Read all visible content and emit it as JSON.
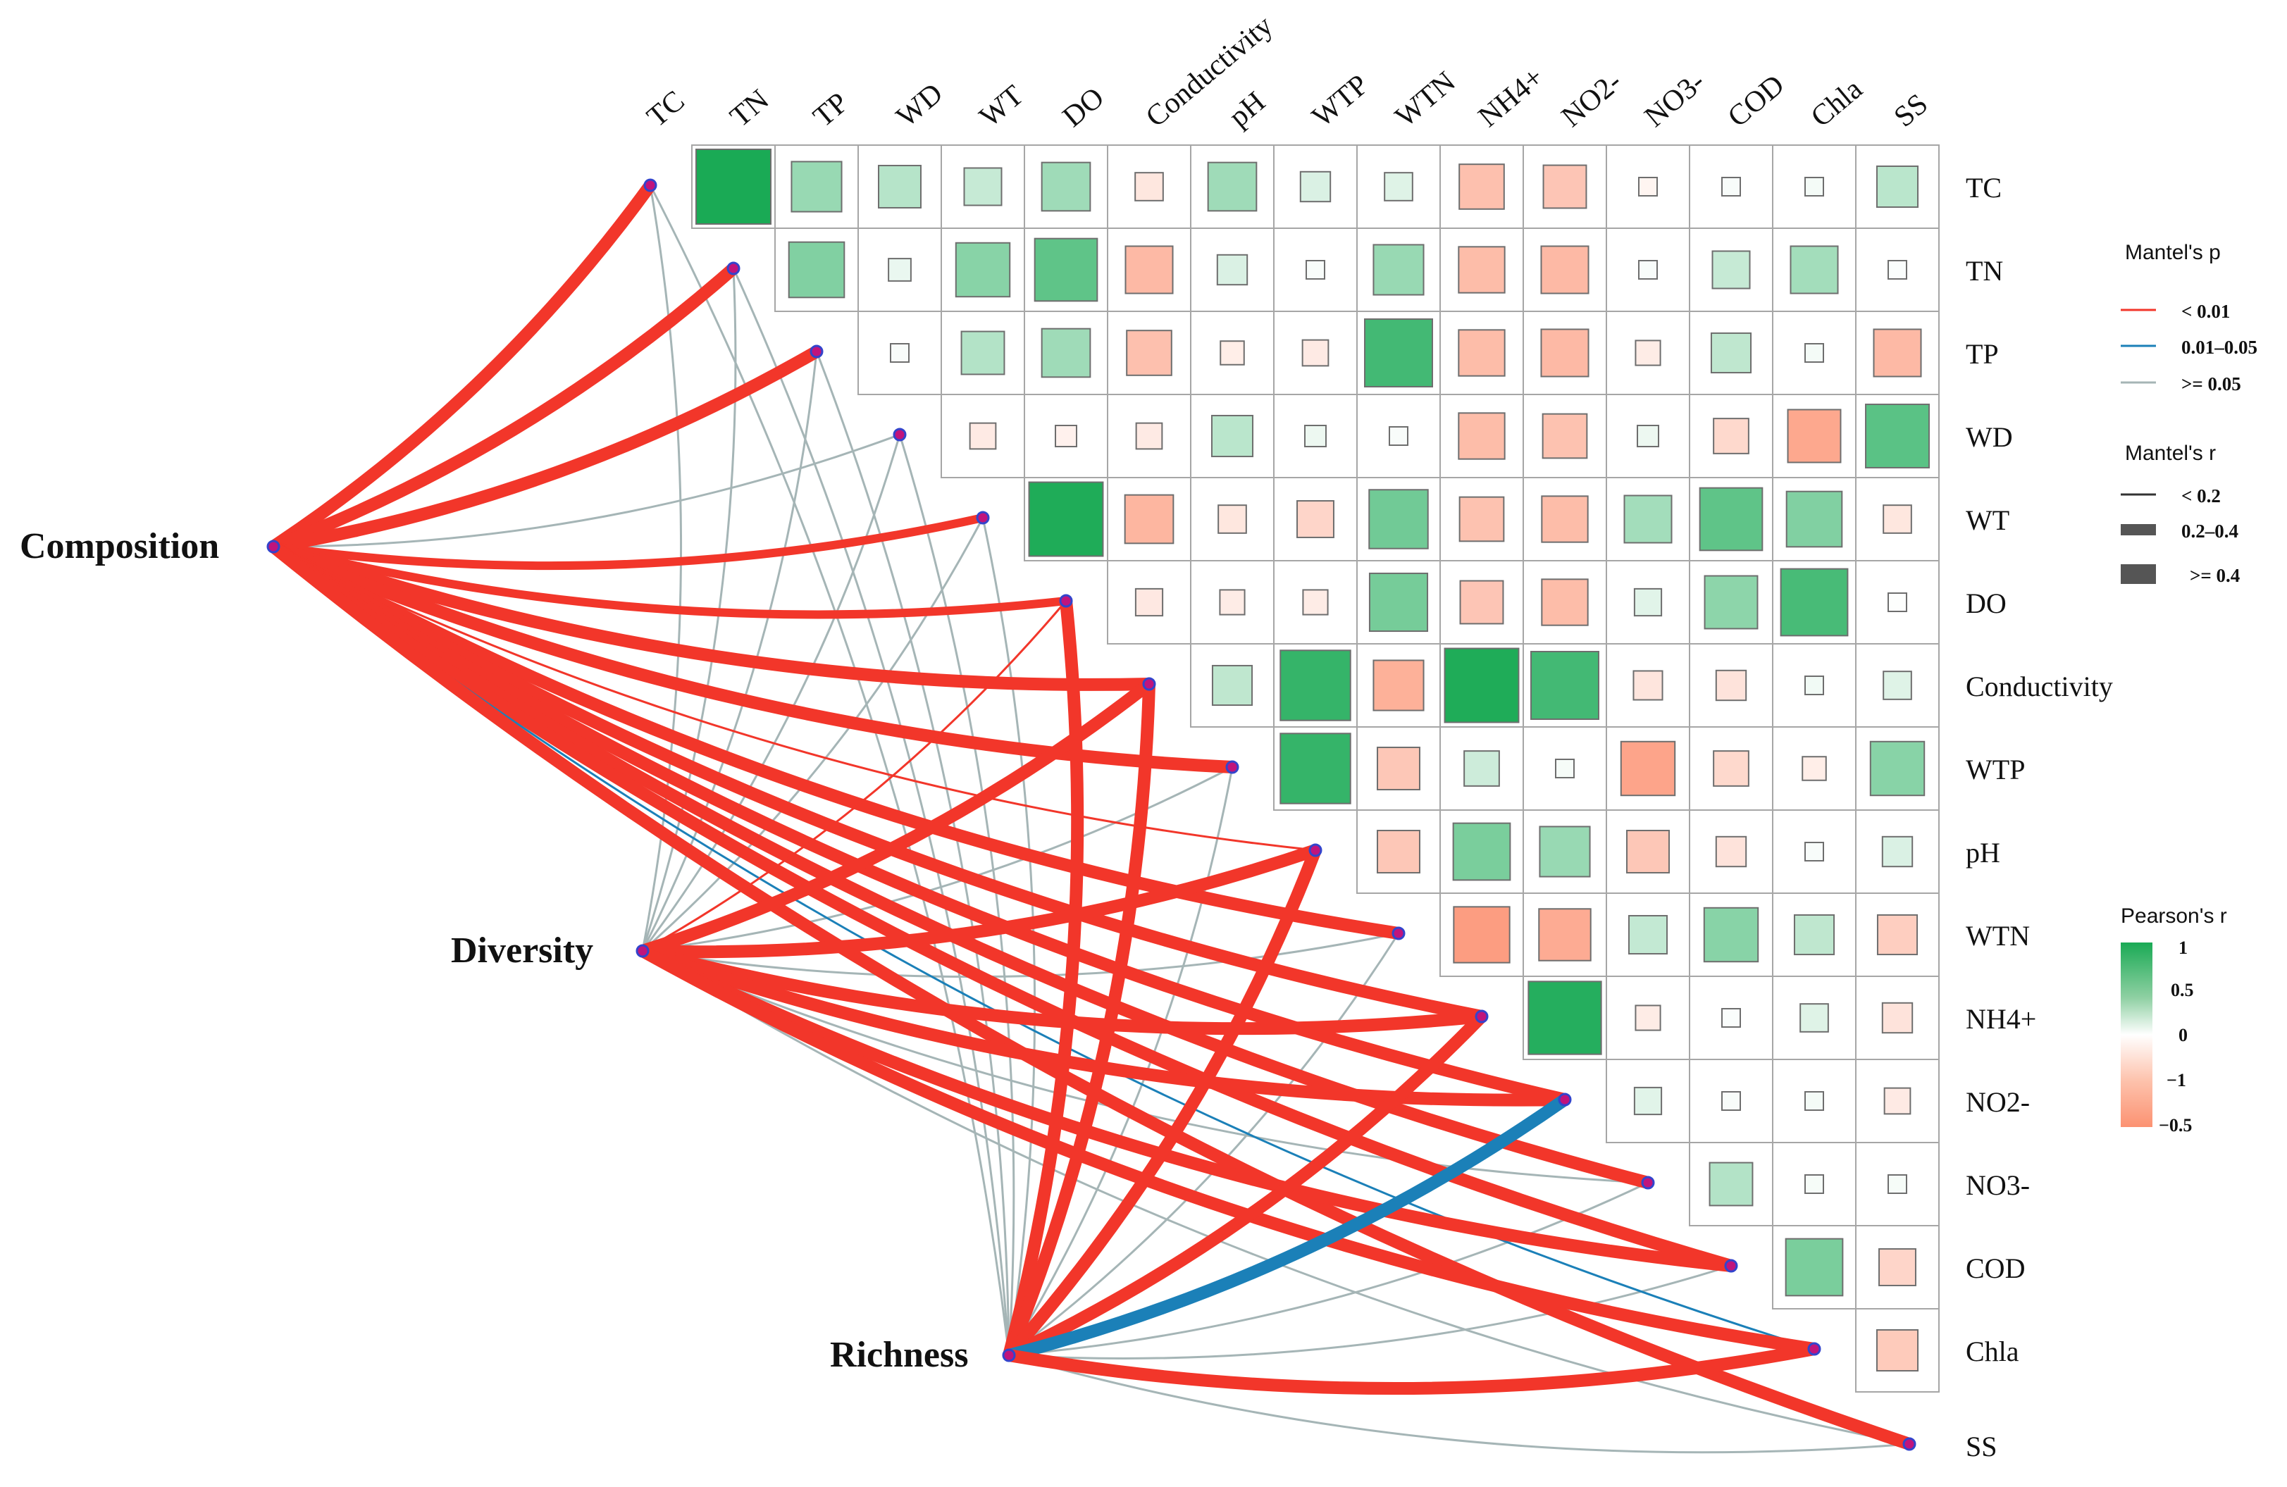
{
  "chart_data": {
    "type": "mantel-correlation-heatmap",
    "variables": [
      "TC",
      "TN",
      "TP",
      "WD",
      "WT",
      "DO",
      "Conductivity",
      "pH",
      "WTP",
      "WTN",
      "NH4+",
      "NO2-",
      "NO3-",
      "COD",
      "Chla",
      "SS"
    ],
    "column_labels": [
      "TC",
      "TN",
      "TP",
      "WD",
      "WT",
      "DO",
      "Conductivity",
      "pH",
      "WTP",
      "WTN",
      "NH4+",
      "NO2-",
      "NO3-",
      "COD",
      "Chla",
      "SS"
    ],
    "row_labels": [
      "TC",
      "TN",
      "TP",
      "WD",
      "WT",
      "DO",
      "Conductivity",
      "WTP",
      "pH",
      "WTN",
      "NH4+",
      "NO2-",
      "NO3-",
      "COD",
      "Chla",
      "SS"
    ],
    "pearson_r": [
      [
        1.0,
        0.45,
        0.32,
        0.25,
        0.42,
        -0.14,
        0.42,
        0.16,
        0.14,
        -0.36,
        -0.33,
        -0.06,
        0.03,
        0.05,
        0.3
      ],
      [
        0.55,
        0.09,
        0.52,
        0.7,
        -0.4,
        0.16,
        0.03,
        0.45,
        -0.38,
        -0.4,
        0.03,
        0.25,
        0.4,
        0.02
      ],
      [
        0.03,
        0.33,
        0.42,
        -0.36,
        -0.1,
        -0.12,
        0.82,
        -0.38,
        -0.4,
        -0.11,
        0.28,
        0.05,
        -0.4
      ],
      [
        -0.12,
        -0.08,
        -0.12,
        0.3,
        0.08,
        0.03,
        -0.38,
        -0.35,
        0.08,
        -0.22,
        -0.5,
        0.72
      ],
      [
        0.98,
        -0.42,
        -0.14,
        -0.24,
        0.62,
        -0.35,
        -0.38,
        0.4,
        0.7,
        0.55,
        -0.14
      ],
      [
        -0.13,
        -0.11,
        -0.11,
        0.6,
        -0.33,
        -0.38,
        0.13,
        0.5,
        0.8,
        0.01
      ],
      [
        0.28,
        0.88,
        -0.45,
        0.98,
        0.82,
        -0.15,
        -0.16,
        0.06,
        0.14
      ],
      [
        0.88,
        -0.32,
        0.22,
        0.04,
        -0.52,
        -0.22,
        -0.1,
        0.52
      ],
      [
        -0.32,
        0.58,
        0.45,
        -0.32,
        -0.16,
        0.03,
        0.16
      ],
      [
        -0.56,
        -0.48,
        0.26,
        0.52,
        0.28,
        -0.28
      ],
      [
        0.95,
        -0.11,
        0.02,
        0.14,
        -0.16
      ],
      [
        0.13,
        0.03,
        0.05,
        -0.12
      ],
      [
        0.33,
        0.04,
        0.04
      ],
      [
        0.58,
        -0.24
      ],
      [
        -0.3
      ]
    ],
    "mantel": {
      "groups": [
        "Composition",
        "Diversity",
        "Richness"
      ],
      "links": [
        {
          "from": "Composition",
          "to": "TC",
          "p": "< 0.01",
          "r": ">= 0.4"
        },
        {
          "from": "Composition",
          "to": "TN",
          "p": "< 0.01",
          "r": ">= 0.4"
        },
        {
          "from": "Composition",
          "to": "TP",
          "p": "< 0.01",
          "r": ">= 0.4"
        },
        {
          "from": "Composition",
          "to": "WD",
          "p": ">= 0.05",
          "r": "< 0.2"
        },
        {
          "from": "Composition",
          "to": "WT",
          "p": "< 0.01",
          "r": "0.2–0.4"
        },
        {
          "from": "Composition",
          "to": "DO",
          "p": "< 0.01",
          "r": "0.2–0.4"
        },
        {
          "from": "Composition",
          "to": "Conductivity",
          "p": "< 0.01",
          "r": ">= 0.4"
        },
        {
          "from": "Composition",
          "to": "WTP",
          "p": "< 0.01",
          "r": ">= 0.4"
        },
        {
          "from": "Composition",
          "to": "pH",
          "p": "< 0.01",
          "r": "< 0.2"
        },
        {
          "from": "Composition",
          "to": "WTN",
          "p": "< 0.01",
          "r": ">= 0.4"
        },
        {
          "from": "Composition",
          "to": "NH4+",
          "p": "< 0.01",
          "r": ">= 0.4"
        },
        {
          "from": "Composition",
          "to": "NO2-",
          "p": "< 0.01",
          "r": ">= 0.4"
        },
        {
          "from": "Composition",
          "to": "NO3-",
          "p": "< 0.01",
          "r": ">= 0.4"
        },
        {
          "from": "Composition",
          "to": "COD",
          "p": "< 0.01",
          "r": ">= 0.4"
        },
        {
          "from": "Composition",
          "to": "Chla",
          "p": "0.01–0.05",
          "r": "< 0.2"
        },
        {
          "from": "Composition",
          "to": "SS",
          "p": "< 0.01",
          "r": ">= 0.4"
        },
        {
          "from": "Diversity",
          "to": "TC",
          "p": ">= 0.05",
          "r": "< 0.2"
        },
        {
          "from": "Diversity",
          "to": "TN",
          "p": ">= 0.05",
          "r": "< 0.2"
        },
        {
          "from": "Diversity",
          "to": "TP",
          "p": ">= 0.05",
          "r": "< 0.2"
        },
        {
          "from": "Diversity",
          "to": "WD",
          "p": ">= 0.05",
          "r": "< 0.2"
        },
        {
          "from": "Diversity",
          "to": "WT",
          "p": ">= 0.05",
          "r": "< 0.2"
        },
        {
          "from": "Diversity",
          "to": "DO",
          "p": "< 0.01",
          "r": "< 0.2"
        },
        {
          "from": "Diversity",
          "to": "Conductivity",
          "p": "< 0.01",
          "r": ">= 0.4"
        },
        {
          "from": "Diversity",
          "to": "WTP",
          "p": ">= 0.05",
          "r": "< 0.2"
        },
        {
          "from": "Diversity",
          "to": "pH",
          "p": "< 0.01",
          "r": ">= 0.4"
        },
        {
          "from": "Diversity",
          "to": "WTN",
          "p": ">= 0.05",
          "r": "< 0.2"
        },
        {
          "from": "Diversity",
          "to": "NH4+",
          "p": "< 0.01",
          "r": ">= 0.4"
        },
        {
          "from": "Diversity",
          "to": "NO2-",
          "p": "< 0.01",
          "r": ">= 0.4"
        },
        {
          "from": "Diversity",
          "to": "NO3-",
          "p": ">= 0.05",
          "r": "< 0.2"
        },
        {
          "from": "Diversity",
          "to": "COD",
          "p": "< 0.01",
          "r": ">= 0.4"
        },
        {
          "from": "Diversity",
          "to": "Chla",
          "p": "< 0.01",
          "r": ">= 0.4"
        },
        {
          "from": "Diversity",
          "to": "SS",
          "p": ">= 0.05",
          "r": "< 0.2"
        },
        {
          "from": "Richness",
          "to": "TC",
          "p": ">= 0.05",
          "r": "< 0.2"
        },
        {
          "from": "Richness",
          "to": "TN",
          "p": ">= 0.05",
          "r": "< 0.2"
        },
        {
          "from": "Richness",
          "to": "TP",
          "p": ">= 0.05",
          "r": "< 0.2"
        },
        {
          "from": "Richness",
          "to": "WD",
          "p": ">= 0.05",
          "r": "< 0.2"
        },
        {
          "from": "Richness",
          "to": "WT",
          "p": ">= 0.05",
          "r": "< 0.2"
        },
        {
          "from": "Richness",
          "to": "DO",
          "p": "< 0.01",
          "r": ">= 0.4"
        },
        {
          "from": "Richness",
          "to": "Conductivity",
          "p": "< 0.01",
          "r": ">= 0.4"
        },
        {
          "from": "Richness",
          "to": "WTP",
          "p": ">= 0.05",
          "r": "< 0.2"
        },
        {
          "from": "Richness",
          "to": "pH",
          "p": "< 0.01",
          "r": ">= 0.4"
        },
        {
          "from": "Richness",
          "to": "WTN",
          "p": ">= 0.05",
          "r": "< 0.2"
        },
        {
          "from": "Richness",
          "to": "NH4+",
          "p": "< 0.01",
          "r": ">= 0.4"
        },
        {
          "from": "Richness",
          "to": "NO2-",
          "p": "0.01–0.05",
          "r": ">= 0.4"
        },
        {
          "from": "Richness",
          "to": "NO3-",
          "p": ">= 0.05",
          "r": "< 0.2"
        },
        {
          "from": "Richness",
          "to": "COD",
          "p": ">= 0.05",
          "r": "< 0.2"
        },
        {
          "from": "Richness",
          "to": "Chla",
          "p": "< 0.01",
          "r": ">= 0.4"
        },
        {
          "from": "Richness",
          "to": "SS",
          "p": ">= 0.05",
          "r": "< 0.2"
        }
      ]
    },
    "legend": {
      "p_title": "Mantel's p",
      "p_labels": [
        "< 0.01",
        "0.01–0.05",
        ">= 0.05"
      ],
      "r_title": "Mantel's r",
      "r_labels": [
        "< 0.2",
        "0.2–0.4",
        ">= 0.4"
      ],
      "pearson_title": "Pearson's r",
      "pearson_ticks": [
        "1",
        "0.5",
        "0",
        "−1",
        "−0.5"
      ]
    },
    "colors": {
      "positive": "#1aaa55",
      "negative": "#fc9272",
      "p_lt_001": "#f2362a",
      "p_001_005": "#1b80b8",
      "p_ge_005": "#a5b5b6",
      "node_fill": "#c0147c",
      "node_stroke": "#3344cc"
    }
  }
}
